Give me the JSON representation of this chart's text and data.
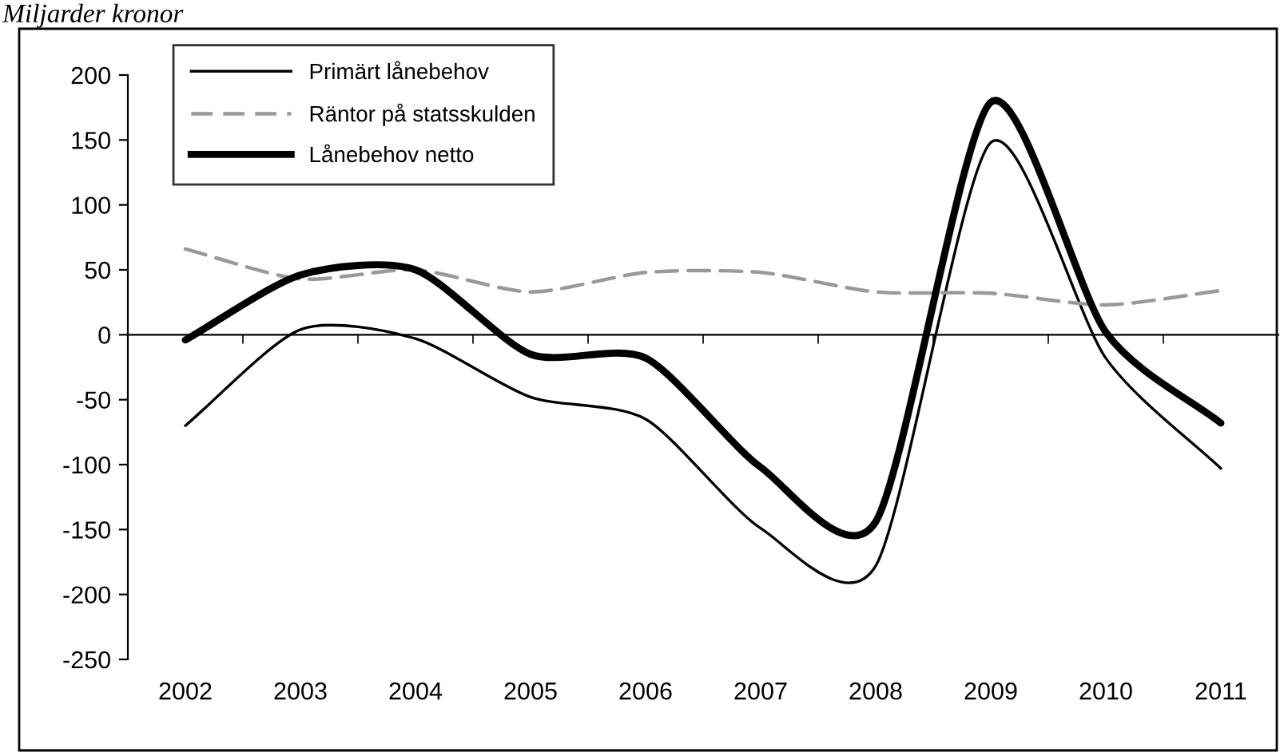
{
  "chart_data": {
    "type": "line",
    "title": "Miljarder kronor",
    "categories": [
      "2002",
      "2003",
      "2004",
      "2005",
      "2006",
      "2007",
      "2008",
      "2009",
      "2010",
      "2011"
    ],
    "series": [
      {
        "name": "Primärt lånebehov",
        "color": "#000000",
        "line_style": "solid",
        "values": [
          -70,
          4,
          -3,
          -48,
          -65,
          -149,
          -178,
          148,
          -18,
          -103
        ]
      },
      {
        "name": "Räntor på statsskulden",
        "color": "#999999",
        "line_style": "dashed",
        "values": [
          66,
          43,
          50,
          33,
          48,
          48,
          33,
          32,
          23,
          34
        ]
      },
      {
        "name": "Lånebehov netto",
        "color": "#000000",
        "line_style": "solid",
        "values": [
          -4,
          46,
          50,
          -15,
          -18,
          -102,
          -144,
          179,
          2,
          -68
        ]
      }
    ],
    "ylim": [
      -250,
      200
    ],
    "yticks": [
      -250,
      -200,
      -150,
      -100,
      -50,
      0,
      50,
      100,
      150,
      200
    ],
    "legend": "top left",
    "marker": "none"
  }
}
